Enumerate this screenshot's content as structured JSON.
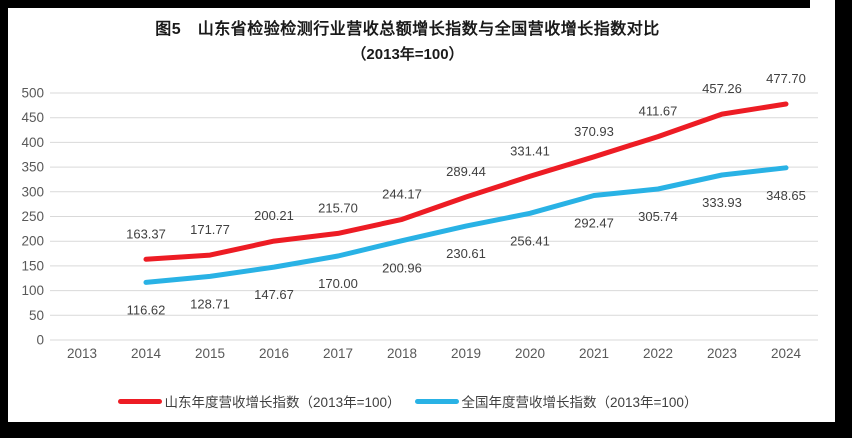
{
  "header": {
    "title": "图5　山东省检验检测行业营收总额增长指数与全国营收增长指数对比",
    "subtitle": "（2013年=100）"
  },
  "legend": {
    "items": [
      {
        "label": "山东年度营收增长指数（2013年=100）",
        "color": "#ed1c24"
      },
      {
        "label": "全国年度营收增长指数（2013年=100）",
        "color": "#29b2e5"
      }
    ]
  },
  "colors": {
    "shandong_line": "#ed1c24",
    "national_line": "#29b2e5",
    "gridline": "#d9d9d9",
    "axis_text": "#595959",
    "data_label_text": "#404040",
    "title_text": "#1a1a1a",
    "frame": "#000000",
    "background": "#ffffff"
  },
  "chart_data": {
    "type": "line",
    "title": "图5　山东省检验检测行业营收总额增长指数与全国营收增长指数对比",
    "subtitle": "（2013年=100）",
    "categories": [
      "2013",
      "2014",
      "2015",
      "2016",
      "2017",
      "2018",
      "2019",
      "2020",
      "2021",
      "2022",
      "2023",
      "2024"
    ],
    "series": [
      {
        "name": "山东年度营收增长指数（2013年=100）",
        "color": "#ed1c24",
        "label_position": "above",
        "values": [
          null,
          163.37,
          171.77,
          200.21,
          215.7,
          244.17,
          289.44,
          331.41,
          370.93,
          411.67,
          457.26,
          477.7
        ]
      },
      {
        "name": "全国年度营收增长指数（2013年=100）",
        "color": "#29b2e5",
        "label_position": "below",
        "values": [
          null,
          116.62,
          128.71,
          147.67,
          170.0,
          200.96,
          230.61,
          256.41,
          292.47,
          305.74,
          333.93,
          348.65
        ]
      }
    ],
    "xlabel": "",
    "ylabel": "",
    "ylim": [
      0,
      500
    ],
    "ytick_step": 50,
    "yticks": [
      0,
      50,
      100,
      150,
      200,
      250,
      300,
      350,
      400,
      450,
      500
    ],
    "grid": true,
    "grid_direction": "horizontal",
    "legend_position": "bottom",
    "data_labels_decimals": 2
  }
}
